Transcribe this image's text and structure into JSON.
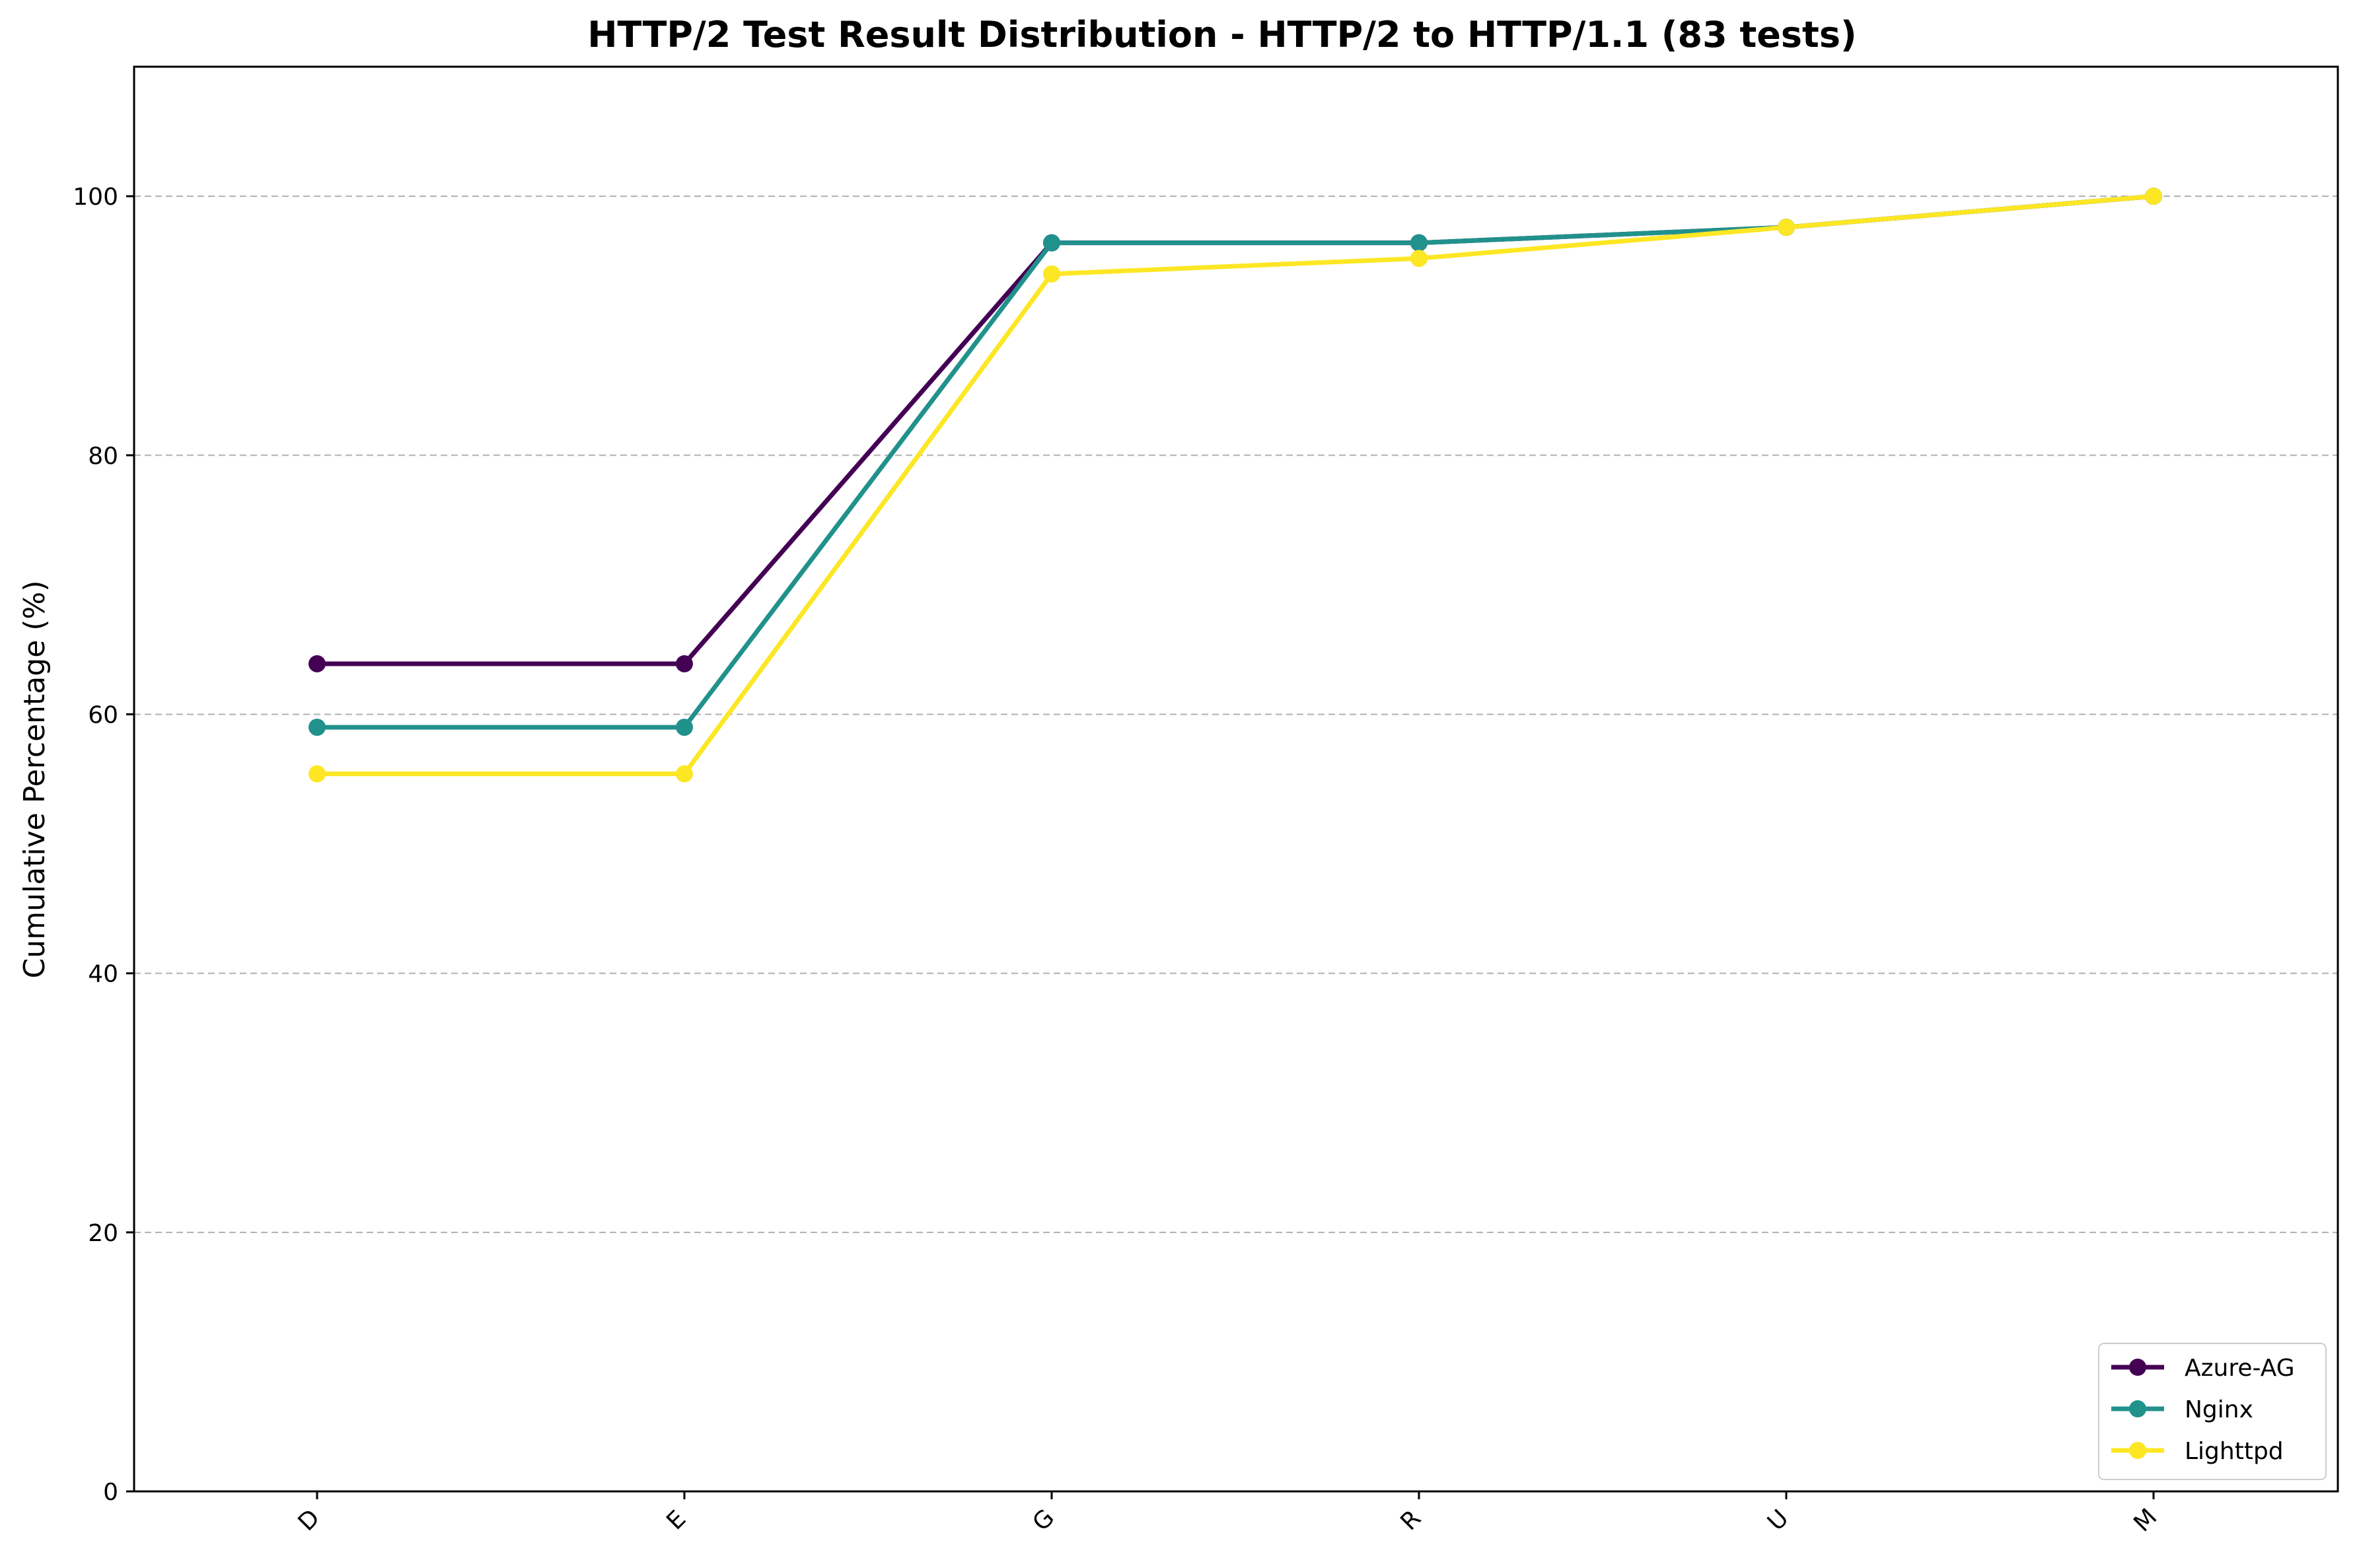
{
  "chart_data": {
    "type": "line",
    "title": "HTTP/2 Test Result Distribution - HTTP/2 to HTTP/1.1 (83 tests)",
    "xlabel": "",
    "ylabel": "Cumulative Percentage (%)",
    "categories": [
      "D",
      "E",
      "G",
      "R",
      "U",
      "M"
    ],
    "ylim": [
      0,
      110
    ],
    "yticks": [
      0,
      20,
      40,
      60,
      80,
      100
    ],
    "grid": "y, dashed",
    "legend_position": "lower-right",
    "series": [
      {
        "name": "Azure-AG",
        "color": "#440154",
        "values": [
          63.9,
          63.9,
          96.4,
          96.4,
          97.6,
          100.0
        ]
      },
      {
        "name": "Nginx",
        "color": "#21918c",
        "values": [
          59.0,
          59.0,
          96.4,
          96.4,
          97.6,
          100.0
        ]
      },
      {
        "name": "Lighttpd",
        "color": "#fde725",
        "values": [
          55.4,
          55.4,
          94.0,
          95.2,
          97.6,
          100.0
        ]
      }
    ]
  }
}
